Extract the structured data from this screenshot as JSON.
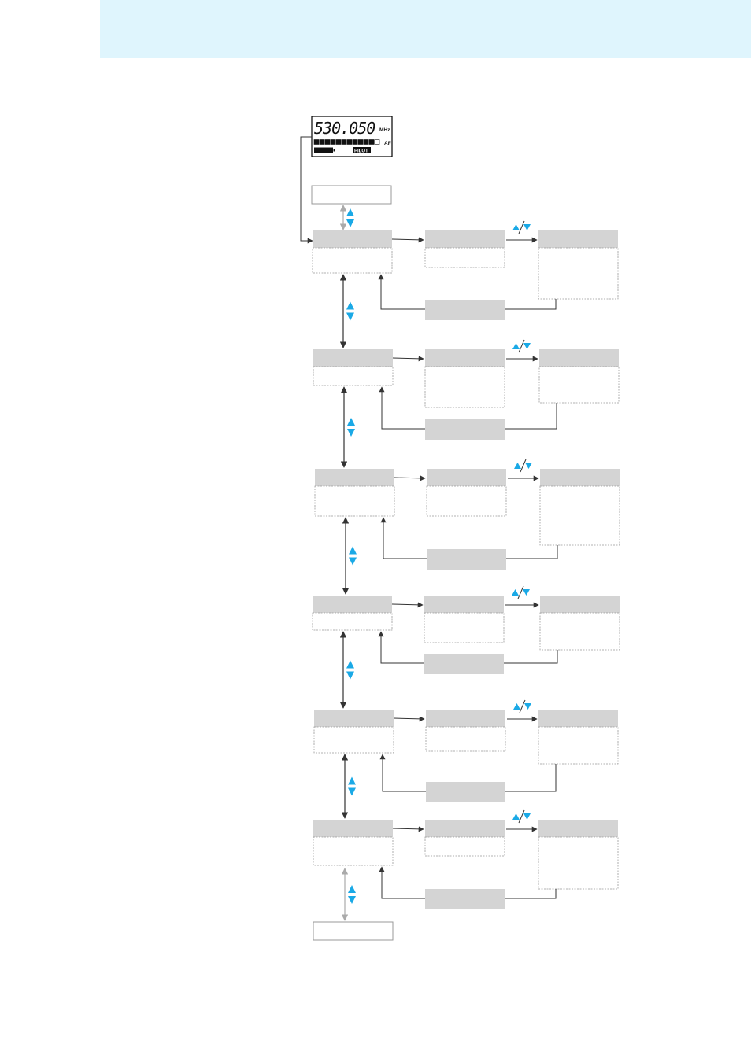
{
  "header": {
    "band_color": "#dff5fd"
  },
  "display": {
    "frequency": "530.050",
    "unit": "MHz",
    "af_label": "AF",
    "pilot_label": "PILOT",
    "af_level_segments": 11,
    "af_total_segments": 12
  },
  "colors": {
    "accent": "#1aa9e6",
    "box_gray": "#d4d4d4",
    "line_dark": "#333333",
    "line_light": "#aaaaaa"
  },
  "icons": {
    "nav_up_down": "up-down-triangles-icon",
    "adjust": "up-slash-down-icon"
  },
  "menu_rows": [
    {
      "id": 1
    },
    {
      "id": 2
    },
    {
      "id": 3
    },
    {
      "id": 4
    },
    {
      "id": 5
    },
    {
      "id": 6
    }
  ]
}
